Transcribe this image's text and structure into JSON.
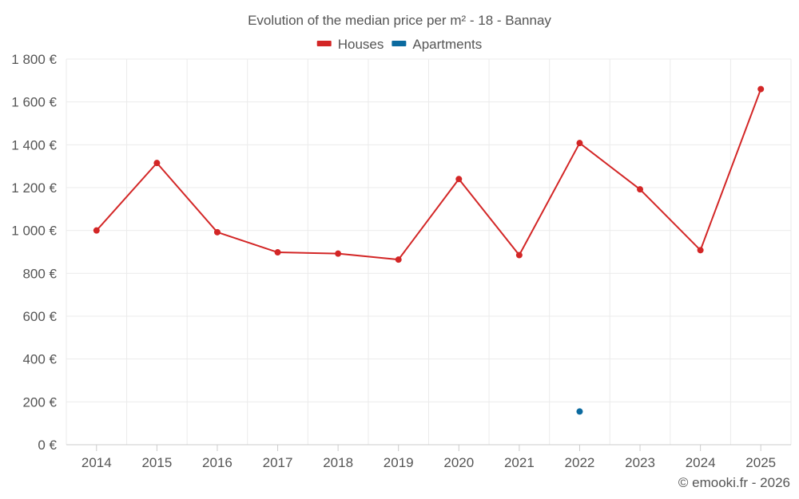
{
  "chart_data": {
    "type": "line",
    "title": "Evolution of the median price per m² - 18 - Bannay",
    "categories": [
      "2014",
      "2015",
      "2016",
      "2017",
      "2018",
      "2019",
      "2020",
      "2021",
      "2022",
      "2023",
      "2024",
      "2025"
    ],
    "series": [
      {
        "name": "Houses",
        "color": "#d32626",
        "values": [
          1000,
          1315,
          992,
          898,
          892,
          864,
          1240,
          885,
          1408,
          1192,
          908,
          1660
        ]
      },
      {
        "name": "Apartments",
        "color": "#0b6a9f",
        "values": [
          null,
          null,
          null,
          null,
          null,
          null,
          null,
          null,
          155,
          null,
          null,
          null
        ]
      }
    ],
    "y_ticks": [
      {
        "value": 0,
        "label": "0 €"
      },
      {
        "value": 200,
        "label": "200 €"
      },
      {
        "value": 400,
        "label": "400 €"
      },
      {
        "value": 600,
        "label": "600 €"
      },
      {
        "value": 800,
        "label": "800 €"
      },
      {
        "value": 1000,
        "label": "1 000 €"
      },
      {
        "value": 1200,
        "label": "1 200 €"
      },
      {
        "value": 1400,
        "label": "1 400 €"
      },
      {
        "value": 1600,
        "label": "1 600 €"
      },
      {
        "value": 1800,
        "label": "1 800 €"
      }
    ],
    "ylim": [
      0,
      1800
    ],
    "xlabel": "",
    "ylabel": "",
    "grid": true,
    "legend_position": "top-center"
  },
  "credit": "© emooki.fr - 2026"
}
